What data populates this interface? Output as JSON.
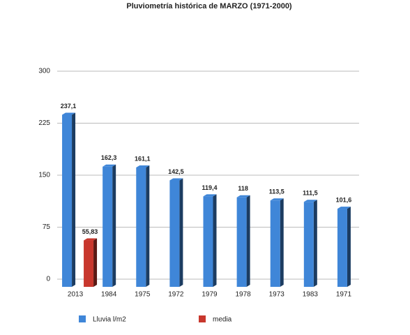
{
  "chart_data": {
    "type": "bar",
    "title": "Pluviometría histórica de MARZO  (1971-2000)",
    "categories": [
      "2013",
      "1984",
      "1975",
      "1972",
      "1979",
      "1978",
      "1973",
      "1983",
      "1971"
    ],
    "series": [
      {
        "name": "Lluvia l/m2",
        "color": "#3f86d8",
        "values": [
          237.1,
          162.3,
          161.1,
          142.5,
          119.4,
          118,
          113.5,
          111.5,
          101.6
        ],
        "value_labels": [
          "237,1",
          "162,3",
          "161,1",
          "142,5",
          "119,4",
          "118",
          "113,5",
          "111,5",
          "101,6"
        ]
      },
      {
        "name": "media",
        "color": "#c8372d",
        "values": [
          55.83,
          null,
          null,
          null,
          null,
          null,
          null,
          null,
          null
        ],
        "value_labels": [
          "55,83",
          null,
          null,
          null,
          null,
          null,
          null,
          null,
          null
        ]
      }
    ],
    "ylim": [
      0,
      300
    ],
    "yticks": [
      0,
      75,
      150,
      225,
      300
    ],
    "grid": true,
    "legend": "bottom"
  }
}
